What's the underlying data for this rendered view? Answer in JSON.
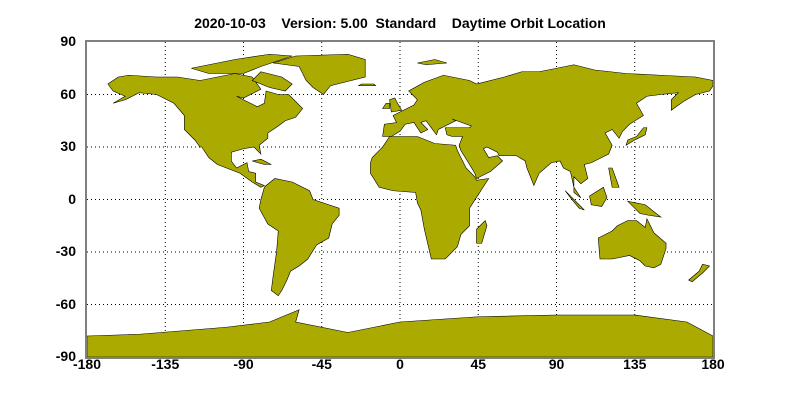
{
  "title": "2020-10-03    Version: 5.00  Standard    Daytime Orbit Location",
  "map": {
    "projection": "equirectangular",
    "land_color": "#AAAA00",
    "coast_color": "#000000",
    "frame_color": "#808080",
    "grid": "dotted",
    "lon_range": [
      -180,
      180
    ],
    "lat_range": [
      -90,
      90
    ]
  },
  "y_ticks": [
    "90",
    "60",
    "30",
    "0",
    "-30",
    "-60",
    "-90"
  ],
  "x_ticks": [
    "-180",
    "-135",
    "-90",
    "-45",
    "0",
    "45",
    "90",
    "135",
    "180"
  ]
}
